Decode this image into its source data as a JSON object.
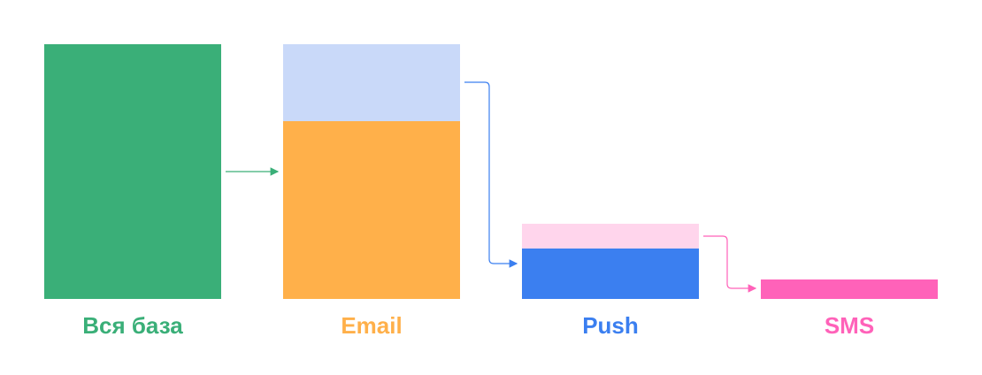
{
  "stages": [
    {
      "label": "Вся база"
    },
    {
      "label": "Email"
    },
    {
      "label": "Push"
    },
    {
      "label": "SMS"
    }
  ]
}
